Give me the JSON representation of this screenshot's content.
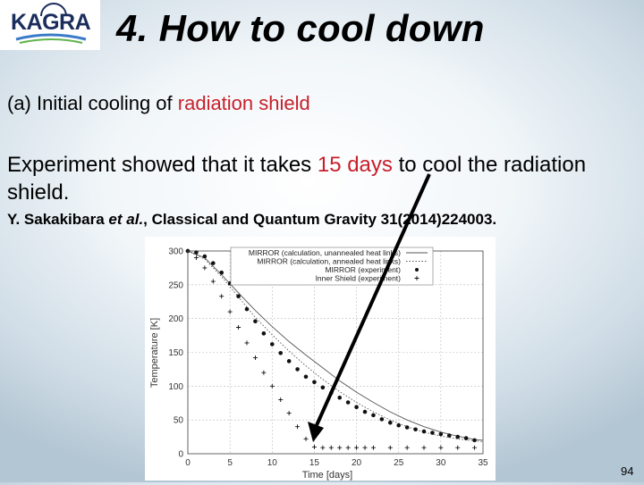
{
  "header": {
    "logo_text": "KAGRA",
    "title": "4. How to cool down"
  },
  "subtitle": {
    "prefix": "(a) Initial cooling of ",
    "highlight": "radiation shield"
  },
  "statement": {
    "before": "Experiment showed that it takes ",
    "highlight": "15 days",
    "after": " to cool the radiation shield."
  },
  "reference": {
    "authors": "Y. Sakakibara ",
    "etal": "et al.",
    "rest": ", Classical and Quantum Gravity 31(2014)224003."
  },
  "chart_data": {
    "type": "line",
    "xlabel": "Time [days]",
    "ylabel": "Temperature [K]",
    "xlim": [
      0,
      35
    ],
    "ylim": [
      0,
      300
    ],
    "xticks": [
      "0",
      "5",
      "10",
      "15",
      "20",
      "25",
      "30",
      "35"
    ],
    "yticks": [
      "0",
      "50",
      "100",
      "150",
      "200",
      "250",
      "300"
    ],
    "grid": true,
    "legend_position": "top-right",
    "series": [
      {
        "name": "MIRROR (calculation, unannealed heat links)",
        "style": "solid",
        "x": [
          0,
          2,
          4,
          6,
          8,
          10,
          12,
          14,
          16,
          18,
          20,
          22,
          24,
          26,
          28,
          30,
          32,
          34,
          35
        ],
        "y": [
          300,
          290,
          265,
          238,
          212,
          188,
          166,
          146,
          127,
          108,
          91,
          76,
          62,
          50,
          40,
          32,
          26,
          21,
          20
        ]
      },
      {
        "name": "MIRROR (calculation, annealed heat links)",
        "style": "dotted",
        "x": [
          0,
          2,
          4,
          6,
          8,
          10,
          12,
          14,
          16,
          18,
          20,
          22,
          24,
          26,
          28,
          30,
          32,
          34,
          35
        ],
        "y": [
          300,
          288,
          262,
          232,
          202,
          176,
          152,
          130,
          110,
          92,
          76,
          62,
          50,
          40,
          32,
          26,
          22,
          19,
          18
        ]
      },
      {
        "name": "MIRROR (experiment)",
        "style": "dot",
        "x": [
          0,
          1,
          2,
          3,
          4,
          5,
          6,
          7,
          8,
          9,
          10,
          11,
          12,
          13,
          14,
          15,
          16,
          17,
          18,
          19,
          20,
          21,
          22,
          23,
          24,
          25,
          26,
          27,
          28,
          29,
          30,
          31,
          32,
          33,
          34
        ],
        "y": [
          300,
          298,
          292,
          282,
          268,
          252,
          233,
          214,
          196,
          178,
          162,
          149,
          137,
          125,
          114,
          106,
          98,
          90,
          83,
          76,
          69,
          62,
          57,
          51,
          46,
          42,
          39,
          36,
          33,
          31,
          29,
          27,
          25,
          23,
          20
        ]
      },
      {
        "name": "Inner Shield (experiment)",
        "style": "plus",
        "x": [
          0,
          1,
          2,
          3,
          4,
          5,
          6,
          7,
          8,
          9,
          10,
          11,
          12,
          13,
          14,
          15,
          16,
          17,
          18,
          19,
          20,
          21,
          22,
          24,
          26,
          28,
          30,
          32,
          34
        ],
        "y": [
          300,
          290,
          275,
          255,
          233,
          210,
          187,
          164,
          142,
          120,
          100,
          80,
          60,
          40,
          22,
          10,
          9,
          9,
          9,
          9,
          9,
          9,
          9,
          9,
          9,
          9,
          9,
          9,
          9
        ]
      }
    ]
  },
  "footer": {
    "page_number": "94"
  },
  "colors": {
    "highlight": "#c8202b",
    "title": "#000000",
    "logo_blue": "#1b2d5c",
    "arrow": "#000000"
  }
}
